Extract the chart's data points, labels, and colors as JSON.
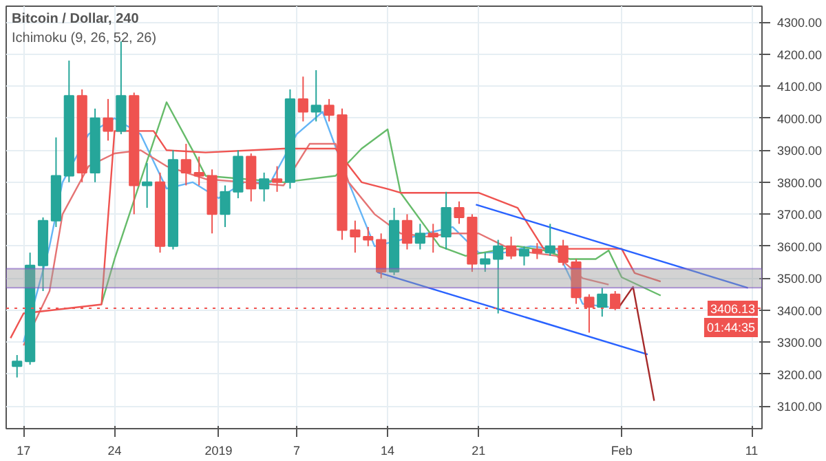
{
  "chart_data": {
    "type": "candlestick",
    "title": "Bitcoin / Dollar, 240",
    "subtitle": "Ichimoku (9, 26, 52, 26)",
    "x": [
      "2018-12-16T12:00",
      "2018-12-17T12:00",
      "2018-12-18T12:00",
      "2018-12-19T12:00",
      "2018-12-20T12:00",
      "2018-12-21T12:00",
      "2018-12-22T12:00",
      "2018-12-23T12:00",
      "2018-12-24T12:00",
      "2018-12-25T12:00",
      "2018-12-26T12:00",
      "2018-12-27T12:00",
      "2018-12-28T12:00",
      "2018-12-29T12:00",
      "2018-12-30T12:00",
      "2018-12-31T12:00",
      "2019-01-01T12:00",
      "2019-01-02T12:00",
      "2019-01-03T12:00",
      "2019-01-04T12:00",
      "2019-01-05T12:00",
      "2019-01-06T12:00",
      "2019-01-07T12:00",
      "2019-01-08T12:00",
      "2019-01-09T12:00",
      "2019-01-10T12:00",
      "2019-01-11T12:00",
      "2019-01-12T12:00",
      "2019-01-13T12:00",
      "2019-01-14T12:00",
      "2019-01-15T12:00",
      "2019-01-16T12:00",
      "2019-01-17T12:00",
      "2019-01-18T12:00",
      "2019-01-19T12:00",
      "2019-01-20T12:00",
      "2019-01-21T12:00",
      "2019-01-22T12:00",
      "2019-01-23T12:00",
      "2019-01-24T12:00",
      "2019-01-25T12:00",
      "2019-01-26T12:00",
      "2019-01-27T12:00",
      "2019-01-28T12:00",
      "2019-01-29T12:00",
      "2019-01-30T12:00",
      "2019-01-31T12:00"
    ],
    "ohlc": [
      [
        3225,
        3260,
        3190,
        3240
      ],
      [
        3240,
        3580,
        3230,
        3540
      ],
      [
        3540,
        3690,
        3460,
        3680
      ],
      [
        3680,
        3940,
        3660,
        3820
      ],
      [
        3820,
        4180,
        3800,
        4070
      ],
      [
        4070,
        4090,
        3800,
        3830
      ],
      [
        3830,
        4030,
        3800,
        4000
      ],
      [
        4000,
        4060,
        3930,
        3960
      ],
      [
        3960,
        4240,
        3950,
        4070
      ],
      [
        4070,
        4080,
        3700,
        3790
      ],
      [
        3790,
        3860,
        3720,
        3800
      ],
      [
        3800,
        3830,
        3580,
        3600
      ],
      [
        3600,
        3900,
        3590,
        3870
      ],
      [
        3870,
        3920,
        3790,
        3830
      ],
      [
        3830,
        3880,
        3790,
        3820
      ],
      [
        3820,
        3840,
        3640,
        3700
      ],
      [
        3700,
        3790,
        3660,
        3770
      ],
      [
        3770,
        3900,
        3750,
        3880
      ],
      [
        3880,
        3890,
        3740,
        3780
      ],
      [
        3780,
        3830,
        3740,
        3810
      ],
      [
        3810,
        3850,
        3770,
        3800
      ],
      [
        3800,
        4090,
        3780,
        4060
      ],
      [
        4060,
        4130,
        3990,
        4020
      ],
      [
        4020,
        4150,
        3990,
        4040
      ],
      [
        4040,
        4060,
        3990,
        4010
      ],
      [
        4010,
        4030,
        3620,
        3650
      ],
      [
        3650,
        3680,
        3580,
        3630
      ],
      [
        3630,
        3660,
        3600,
        3620
      ],
      [
        3620,
        3640,
        3500,
        3520
      ],
      [
        3520,
        3720,
        3510,
        3680
      ],
      [
        3680,
        3700,
        3590,
        3610
      ],
      [
        3610,
        3670,
        3590,
        3640
      ],
      [
        3640,
        3670,
        3580,
        3630
      ],
      [
        3630,
        3770,
        3590,
        3720
      ],
      [
        3720,
        3740,
        3670,
        3690
      ],
      [
        3690,
        3700,
        3520,
        3545
      ],
      [
        3545,
        3580,
        3520,
        3560
      ],
      [
        3560,
        3620,
        3390,
        3600
      ],
      [
        3600,
        3630,
        3560,
        3570
      ],
      [
        3570,
        3600,
        3540,
        3590
      ],
      [
        3590,
        3610,
        3560,
        3580
      ],
      [
        3580,
        3670,
        3570,
        3600
      ],
      [
        3600,
        3620,
        3540,
        3550
      ],
      [
        3550,
        3560,
        3420,
        3440
      ],
      [
        3440,
        3450,
        3330,
        3410
      ],
      [
        3410,
        3470,
        3380,
        3450
      ],
      [
        3450,
        3460,
        3400,
        3406
      ]
    ],
    "colors": [
      "#26a69a",
      "#26a69a",
      "#26a69a",
      "#26a69a",
      "#26a69a",
      "#ef5350",
      "#26a69a",
      "#ef5350",
      "#26a69a",
      "#ef5350",
      "#26a69a",
      "#ef5350",
      "#26a69a",
      "#ef5350",
      "#ef5350",
      "#ef5350",
      "#26a69a",
      "#26a69a",
      "#ef5350",
      "#26a69a",
      "#ef5350",
      "#26a69a",
      "#ef5350",
      "#26a69a",
      "#ef5350",
      "#ef5350",
      "#ef5350",
      "#ef5350",
      "#ef5350",
      "#26a69a",
      "#ef5350",
      "#26a69a",
      "#ef5350",
      "#26a69a",
      "#ef5350",
      "#ef5350",
      "#26a69a",
      "#26a69a",
      "#ef5350",
      "#26a69a",
      "#ef5350",
      "#26a69a",
      "#ef5350",
      "#ef5350",
      "#ef5350",
      "#26a69a",
      "#ef5350"
    ],
    "series": [
      {
        "type": "line",
        "color": "#64b5f6",
        "x": [
          "2018-12-17",
          "2018-12-19",
          "2018-12-20",
          "2018-12-22",
          "2018-12-24",
          "2018-12-26",
          "2018-12-28",
          "2018-12-30",
          "2019-01-01",
          "2019-01-03",
          "2019-01-05",
          "2019-01-07",
          "2019-01-09",
          "2019-01-11",
          "2019-01-13",
          "2019-01-15",
          "2019-01-17",
          "2019-01-19",
          "2019-01-21",
          "2019-01-23",
          "2019-01-25",
          "2019-01-27",
          "2019-01-29",
          "2019-01-31"
        ],
        "values": [
          3300,
          3600,
          3800,
          3950,
          4000,
          3950,
          3780,
          3800,
          3750,
          3800,
          3800,
          3950,
          4020,
          3800,
          3600,
          3620,
          3640,
          3660,
          3580,
          3580,
          3600,
          3590,
          3420,
          3410
        ]
      },
      {
        "type": "line",
        "color": "#e57373",
        "x": [
          "2018-12-17",
          "2018-12-19",
          "2018-12-20",
          "2018-12-22",
          "2018-12-24",
          "2018-12-26",
          "2018-12-28",
          "2018-12-31",
          "2019-01-03",
          "2019-01-06",
          "2019-01-08",
          "2019-01-10",
          "2019-01-11",
          "2019-01-13",
          "2019-01-15",
          "2019-01-17",
          "2019-01-19",
          "2019-01-21",
          "2019-01-23",
          "2019-01-25",
          "2019-01-27",
          "2019-01-29",
          "2019-01-31"
        ],
        "values": [
          3290,
          3460,
          3700,
          3850,
          3890,
          3900,
          3850,
          3810,
          3800,
          3790,
          3920,
          3920,
          3800,
          3700,
          3640,
          3630,
          3640,
          3640,
          3600,
          3580,
          3570,
          3500,
          3480
        ]
      },
      {
        "type": "line",
        "color": "#66bb6a",
        "x": [
          "2018-12-23",
          "2018-12-24",
          "2018-12-28",
          "2018-12-30",
          "2018-12-31",
          "2019-01-06",
          "2019-01-10",
          "2019-01-12",
          "2019-01-14",
          "2019-01-15",
          "2019-01-18",
          "2019-01-20",
          "2019-01-24",
          "2019-01-26",
          "2019-01-28",
          "2019-01-30",
          "2019-01-31",
          "2019-02-01",
          "2019-02-04"
        ],
        "values": [
          3420,
          3560,
          4050,
          3900,
          3820,
          3800,
          3820,
          3905,
          3965,
          3767,
          3600,
          3570,
          3600,
          3587,
          3560,
          3560,
          3587,
          3503,
          3446
        ]
      },
      {
        "type": "line",
        "color": "#ef5350",
        "x": [
          "2018-12-16",
          "2018-12-17",
          "2018-12-23",
          "2018-12-24",
          "2018-12-27",
          "2018-12-28",
          "2018-12-31",
          "2019-01-06",
          "2019-01-10",
          "2019-01-12",
          "2019-01-14",
          "2019-01-15",
          "2019-01-21",
          "2019-01-24",
          "2019-01-26",
          "2019-02-01",
          "2019-02-02",
          "2019-02-04"
        ],
        "values": [
          3313,
          3390,
          3418,
          3960,
          3960,
          3900,
          3893,
          3905,
          3905,
          3800,
          3779,
          3767,
          3767,
          3720,
          3592,
          3592,
          3516,
          3490
        ]
      },
      {
        "type": "line",
        "color": "#2962ff",
        "x": [
          "2019-01-20T19:00",
          "2019-02-10T17:00"
        ],
        "values": [
          3730,
          3470
        ]
      },
      {
        "type": "line",
        "color": "#2962ff",
        "x": [
          "2019-01-13T05:00",
          "2019-02-03T00:00"
        ],
        "values": [
          3519,
          3262
        ]
      },
      {
        "type": "line",
        "color": "#a52a2a",
        "x": [
          "2019-01-31T19:00",
          "2019-02-01T21:00",
          "2019-02-03T12:00"
        ],
        "values": [
          3410,
          3473,
          3117
        ]
      }
    ],
    "xlim": [
      "2018-12-15T16:00",
      "2019-02-11T19:00"
    ],
    "xticks": [
      {
        "value": "2018-12-17",
        "label": "17"
      },
      {
        "value": "2018-12-24",
        "label": "24"
      },
      {
        "value": "2019-01-01",
        "label": "2019"
      },
      {
        "value": "2019-01-07",
        "label": "7"
      },
      {
        "value": "2019-01-14",
        "label": "14"
      },
      {
        "value": "2019-01-21",
        "label": "21"
      },
      {
        "value": "2019-02-01",
        "label": "Feb"
      },
      {
        "value": "2019-02-11",
        "label": "11"
      }
    ],
    "ylim": [
      3030,
      4350
    ],
    "yticks": [
      {
        "value": 3100,
        "label": "3100.00"
      },
      {
        "value": 3200,
        "label": "3200.00"
      },
      {
        "value": 3300,
        "label": "3300.00"
      },
      {
        "value": 3400,
        "label": "3400.00"
      },
      {
        "value": 3500,
        "label": "3500.00"
      },
      {
        "value": 3600,
        "label": "3600.00"
      },
      {
        "value": 3700,
        "label": "3700.00"
      },
      {
        "value": 3800,
        "label": "3800.00"
      },
      {
        "value": 3900,
        "label": "3900.00"
      },
      {
        "value": 4000,
        "label": "4000.00"
      },
      {
        "value": 4100,
        "label": "4100.00"
      },
      {
        "value": 4200,
        "label": "4200.00"
      },
      {
        "value": 4300,
        "label": "4300.00"
      }
    ],
    "ref_lines": [
      {
        "axis": "y",
        "value": 3406.13,
        "label": "3406.13",
        "color": "#ef5350",
        "line_style": "dotted"
      }
    ],
    "bands": [
      {
        "axis": "y",
        "from": 3470,
        "to": 3530,
        "color": "#9e9e9e"
      }
    ],
    "annotations": [
      "01:44:35"
    ],
    "grid": true
  }
}
